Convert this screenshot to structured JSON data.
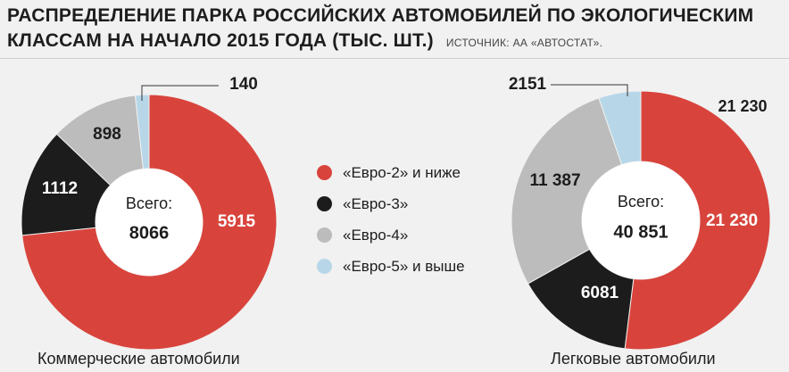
{
  "title_line1": "РАСПРЕДЕЛЕНИЕ ПАРКА РОССИЙСКИХ АВТОМОБИЛЕЙ ПО ЭКОЛОГИЧЕСКИМ",
  "title_line2": "КЛАССАМ НА НАЧАЛО 2015 ГОДА (ТЫС. ШТ.)",
  "source": "ИСТОЧНИК: АА «АВТОСТАТ».",
  "legend": [
    {
      "label": "«Евро-2» и ниже",
      "color": "#d8443c"
    },
    {
      "label": "«Евро-3»",
      "color": "#1c1c1c"
    },
    {
      "label": "«Евро-4»",
      "color": "#bcbcbc"
    },
    {
      "label": "«Евро-5» и выше",
      "color": "#b7d7e8"
    }
  ],
  "chart_data": [
    {
      "type": "pie",
      "title": "Коммерческие автомобили",
      "total_label": "Всего:",
      "total": "8066",
      "categories": [
        "«Евро-2» и ниже",
        "«Евро-3»",
        "«Евро-4»",
        "«Евро-5» и выше"
      ],
      "values": [
        5915,
        1112,
        898,
        140
      ],
      "value_labels": [
        "5915",
        "1112",
        "898",
        "140"
      ]
    },
    {
      "type": "pie",
      "title": "Легковые автомобили",
      "total_label": "Всего:",
      "total": "40 851",
      "categories": [
        "«Евро-2» и ниже",
        "«Евро-3»",
        "«Евро-4»",
        "«Евро-5» и выше"
      ],
      "values": [
        21230,
        6081,
        11387,
        2151
      ],
      "value_labels": [
        "21 230",
        "6081",
        "11 387",
        "2151"
      ],
      "outer_callout": "21 230"
    }
  ]
}
